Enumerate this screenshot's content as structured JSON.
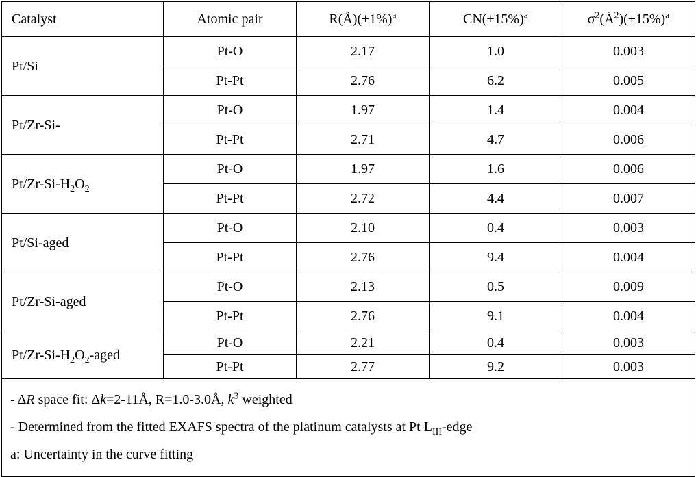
{
  "headers": {
    "catalyst": "Catalyst",
    "pair": "Atomic pair",
    "r_html": "R(Å)(±1%)<sup>a</sup>",
    "cn_html": "CN(±15%)<sup>a</sup>",
    "s_html": "σ<sup>2</sup>(Å<sup>2</sup>)(±15%)<sup>a</sup>"
  },
  "rows": [
    {
      "catalyst_html": "Pt/Si",
      "pairs": [
        {
          "pair": "Pt-O",
          "r": "2.17",
          "cn": "1.0",
          "s": "0.003"
        },
        {
          "pair": "Pt-Pt",
          "r": "2.76",
          "cn": "6.2",
          "s": "0.005"
        }
      ]
    },
    {
      "catalyst_html": "Pt/Zr-Si-",
      "pairs": [
        {
          "pair": "Pt-O",
          "r": "1.97",
          "cn": "1.4",
          "s": "0.004"
        },
        {
          "pair": "Pt-Pt",
          "r": "2.71",
          "cn": "4.7",
          "s": "0.006"
        }
      ]
    },
    {
      "catalyst_html": "Pt/Zr-Si-H<sub>2</sub>O<sub>2</sub>",
      "pairs": [
        {
          "pair": "Pt-O",
          "r": "1.97",
          "cn": "1.6",
          "s": "0.006"
        },
        {
          "pair": "Pt-Pt",
          "r": "2.72",
          "cn": "4.4",
          "s": "0.007"
        }
      ]
    },
    {
      "catalyst_html": "Pt/Si-aged",
      "pairs": [
        {
          "pair": "Pt-O",
          "r": "2.10",
          "cn": "0.4",
          "s": "0.003"
        },
        {
          "pair": "Pt-Pt",
          "r": "2.76",
          "cn": "9.4",
          "s": "0.004"
        }
      ]
    },
    {
      "catalyst_html": "Pt/Zr-Si-aged",
      "pairs": [
        {
          "pair": "Pt-O",
          "r": "2.13",
          "cn": "0.5",
          "s": "0.009"
        },
        {
          "pair": "Pt-Pt",
          "r": "2.76",
          "cn": "9.1",
          "s": "0.004"
        }
      ]
    },
    {
      "catalyst_html": "Pt/Zr-Si-H<sub>2</sub>O<sub>2</sub>-aged",
      "tight": true,
      "pairs": [
        {
          "pair": "Pt-O",
          "r": "2.21",
          "cn": "0.4",
          "s": "0.003"
        },
        {
          "pair": "Pt-Pt",
          "r": "2.77",
          "cn": "9.2",
          "s": "0.003"
        }
      ]
    }
  ],
  "notes_html": "- Δ<span class=\"ital\">R</span> space fit: Δ<span class=\"ital\">k</span>=2-11Å, R=1.0-3.0Å, <span class=\"ital\">k</span><sup>3</sup> weighted<br>- Determined from the fitted EXAFS spectra of the platinum catalysts at Pt L<sub>III</sub>-edge<br>a: Uncertainty in the curve fitting"
}
